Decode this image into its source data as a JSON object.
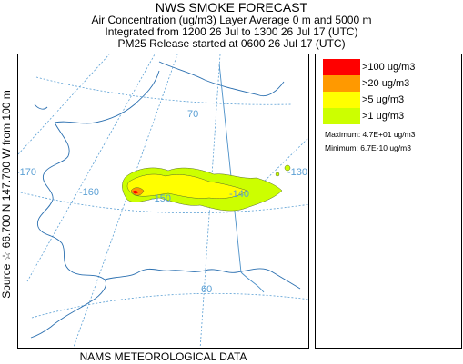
{
  "header": {
    "title": "NWS SMOKE FORECAST",
    "line2": "Air Concentration (ug/m3) Layer Average    0 m and  5000 m",
    "line3": "Integrated from 1200 26 Jul to 1300 26 Jul 17 (UTC)",
    "line4": "PM25 Release started at 0600 26 Jul 17 (UTC)"
  },
  "side_label": "Source ☆ 66.700  N 147.700  W    from  100 m",
  "footer": "NAMS METEOROLOGICAL DATA",
  "map": {
    "grid_labels": [
      "-170",
      "-160",
      "-150",
      "-140",
      "-130",
      "70",
      "60"
    ]
  },
  "legend": {
    "items": [
      {
        "label": ">100 ug/m3",
        "color": "#ff0000"
      },
      {
        "label": ">20 ug/m3",
        "color": "#ff9900"
      },
      {
        "label": ">5 ug/m3",
        "color": "#ffff00"
      },
      {
        "label": ">1 ug/m3",
        "color": "#ccff00"
      }
    ],
    "maximum": "Maximum: 4.7E+01 ug/m3",
    "minimum": "Minimum: 6.7E-10 ug/m3"
  }
}
